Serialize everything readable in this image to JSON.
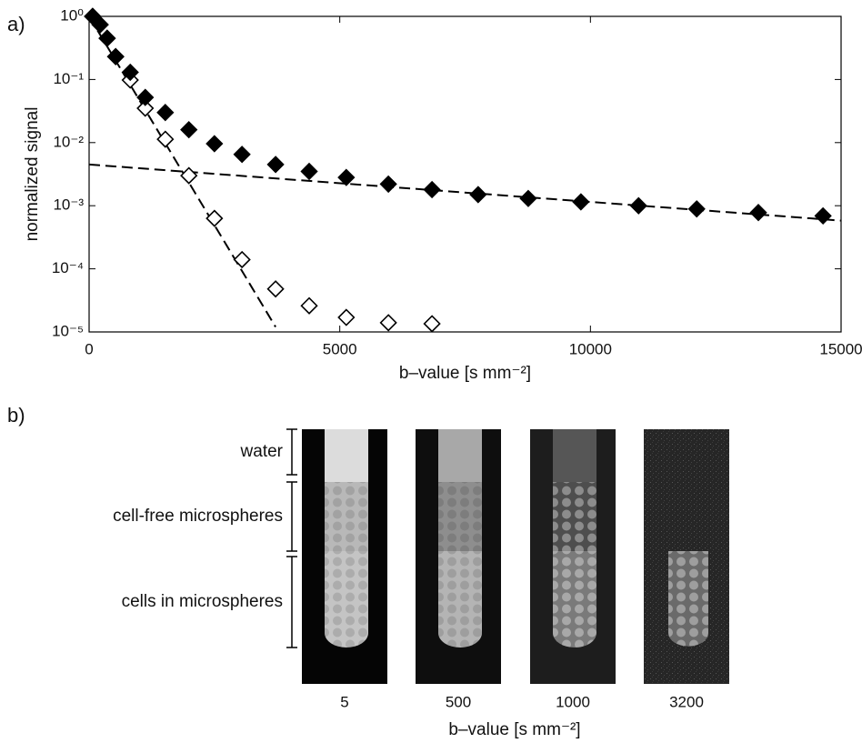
{
  "chart_data": [
    {
      "type": "scatter",
      "label": "a)",
      "xlabel": "b–value [s mm⁻²]",
      "ylabel": "normalized signal",
      "xlim": [
        0,
        15000
      ],
      "xticks": [
        0,
        5000,
        10000,
        15000
      ],
      "ylim": [
        1e-05,
        1
      ],
      "log_y": true,
      "yticks": [
        {
          "value": 1,
          "label": "10⁰"
        },
        {
          "value": 0.1,
          "label": "10⁻¹"
        },
        {
          "value": 0.01,
          "label": "10⁻²"
        },
        {
          "value": 0.001,
          "label": "10⁻³"
        },
        {
          "value": 0.0001,
          "label": "10⁻⁴"
        },
        {
          "value": 1e-05,
          "label": "10⁻⁵"
        }
      ],
      "series": [
        {
          "marker": "open-diamond",
          "color": "#000000",
          "x": [
            70,
            220,
            360,
            530,
            820,
            1120,
            1520,
            1990,
            2500,
            3050,
            3720,
            4390,
            5130,
            5970,
            6840
          ],
          "values": [
            1.0,
            0.74,
            0.45,
            0.23,
            0.098,
            0.035,
            0.0113,
            0.003,
            0.00063,
            0.00014,
            4.8e-05,
            2.6e-05,
            1.7e-05,
            1.4e-05,
            1.35e-05
          ]
        },
        {
          "marker": "filled-diamond",
          "color": "#000000",
          "x": [
            70,
            220,
            360,
            530,
            820,
            1120,
            1520,
            1990,
            2500,
            3050,
            3720,
            4390,
            5130,
            5970,
            6840,
            7760,
            8760,
            9810,
            10960,
            12120,
            13350,
            14640
          ],
          "values": [
            1.0,
            0.74,
            0.45,
            0.23,
            0.13,
            0.052,
            0.03,
            0.016,
            0.0096,
            0.0065,
            0.0045,
            0.0035,
            0.0028,
            0.0022,
            0.0018,
            0.0015,
            0.0013,
            0.00115,
            0.001,
            0.00089,
            0.00078,
            0.00069
          ]
        },
        {
          "marker": "dashed-line",
          "color": "#000000",
          "x": [
            0,
            15000
          ],
          "values": [
            0.0045,
            0.00058
          ]
        },
        {
          "marker": "dashed-line",
          "color": "#000000",
          "x": [
            0,
            3720
          ],
          "values": [
            1.0,
            1.2e-05
          ]
        }
      ]
    },
    {
      "type": "image",
      "label": "b)",
      "xlabel": "b–value [s mm⁻²]",
      "categories": [
        5,
        500,
        1000,
        3200
      ],
      "annotations": [
        "water",
        "cell-free microspheres",
        "cells in microspheres"
      ]
    }
  ]
}
